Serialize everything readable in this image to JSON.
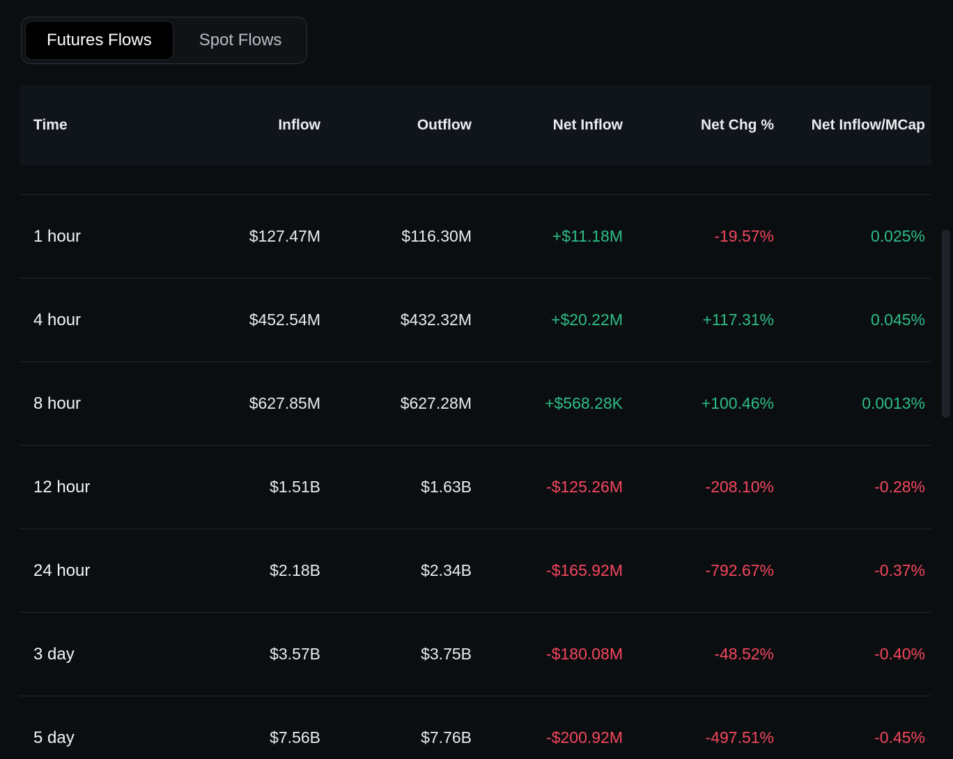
{
  "colors": {
    "positive": "#2ebd85",
    "negative": "#f5475d",
    "background": "#0b0e11",
    "header_background": "#10141b"
  },
  "tabs": [
    {
      "label": "Futures Flows",
      "active": true
    },
    {
      "label": "Spot Flows",
      "active": false
    }
  ],
  "table": {
    "columns": [
      "Time",
      "Inflow",
      "Outflow",
      "Net Inflow",
      "Net Chg %",
      "Net Inflow/MCap"
    ],
    "rows": [
      {
        "time": "1 hour",
        "inflow": "$127.47M",
        "outflow": "$116.30M",
        "net_inflow": "+$11.18M",
        "net_chg_pct": "-19.57%",
        "net_inflow_mcap": "0.025%"
      },
      {
        "time": "4 hour",
        "inflow": "$452.54M",
        "outflow": "$432.32M",
        "net_inflow": "+$20.22M",
        "net_chg_pct": "+117.31%",
        "net_inflow_mcap": "0.045%"
      },
      {
        "time": "8 hour",
        "inflow": "$627.85M",
        "outflow": "$627.28M",
        "net_inflow": "+$568.28K",
        "net_chg_pct": "+100.46%",
        "net_inflow_mcap": "0.0013%"
      },
      {
        "time": "12 hour",
        "inflow": "$1.51B",
        "outflow": "$1.63B",
        "net_inflow": "-$125.26M",
        "net_chg_pct": "-208.10%",
        "net_inflow_mcap": "-0.28%"
      },
      {
        "time": "24 hour",
        "inflow": "$2.18B",
        "outflow": "$2.34B",
        "net_inflow": "-$165.92M",
        "net_chg_pct": "-792.67%",
        "net_inflow_mcap": "-0.37%"
      },
      {
        "time": "3 day",
        "inflow": "$3.57B",
        "outflow": "$3.75B",
        "net_inflow": "-$180.08M",
        "net_chg_pct": "-48.52%",
        "net_inflow_mcap": "-0.40%"
      },
      {
        "time": "5 day",
        "inflow": "$7.56B",
        "outflow": "$7.76B",
        "net_inflow": "-$200.92M",
        "net_chg_pct": "-497.51%",
        "net_inflow_mcap": "-0.45%"
      }
    ]
  }
}
